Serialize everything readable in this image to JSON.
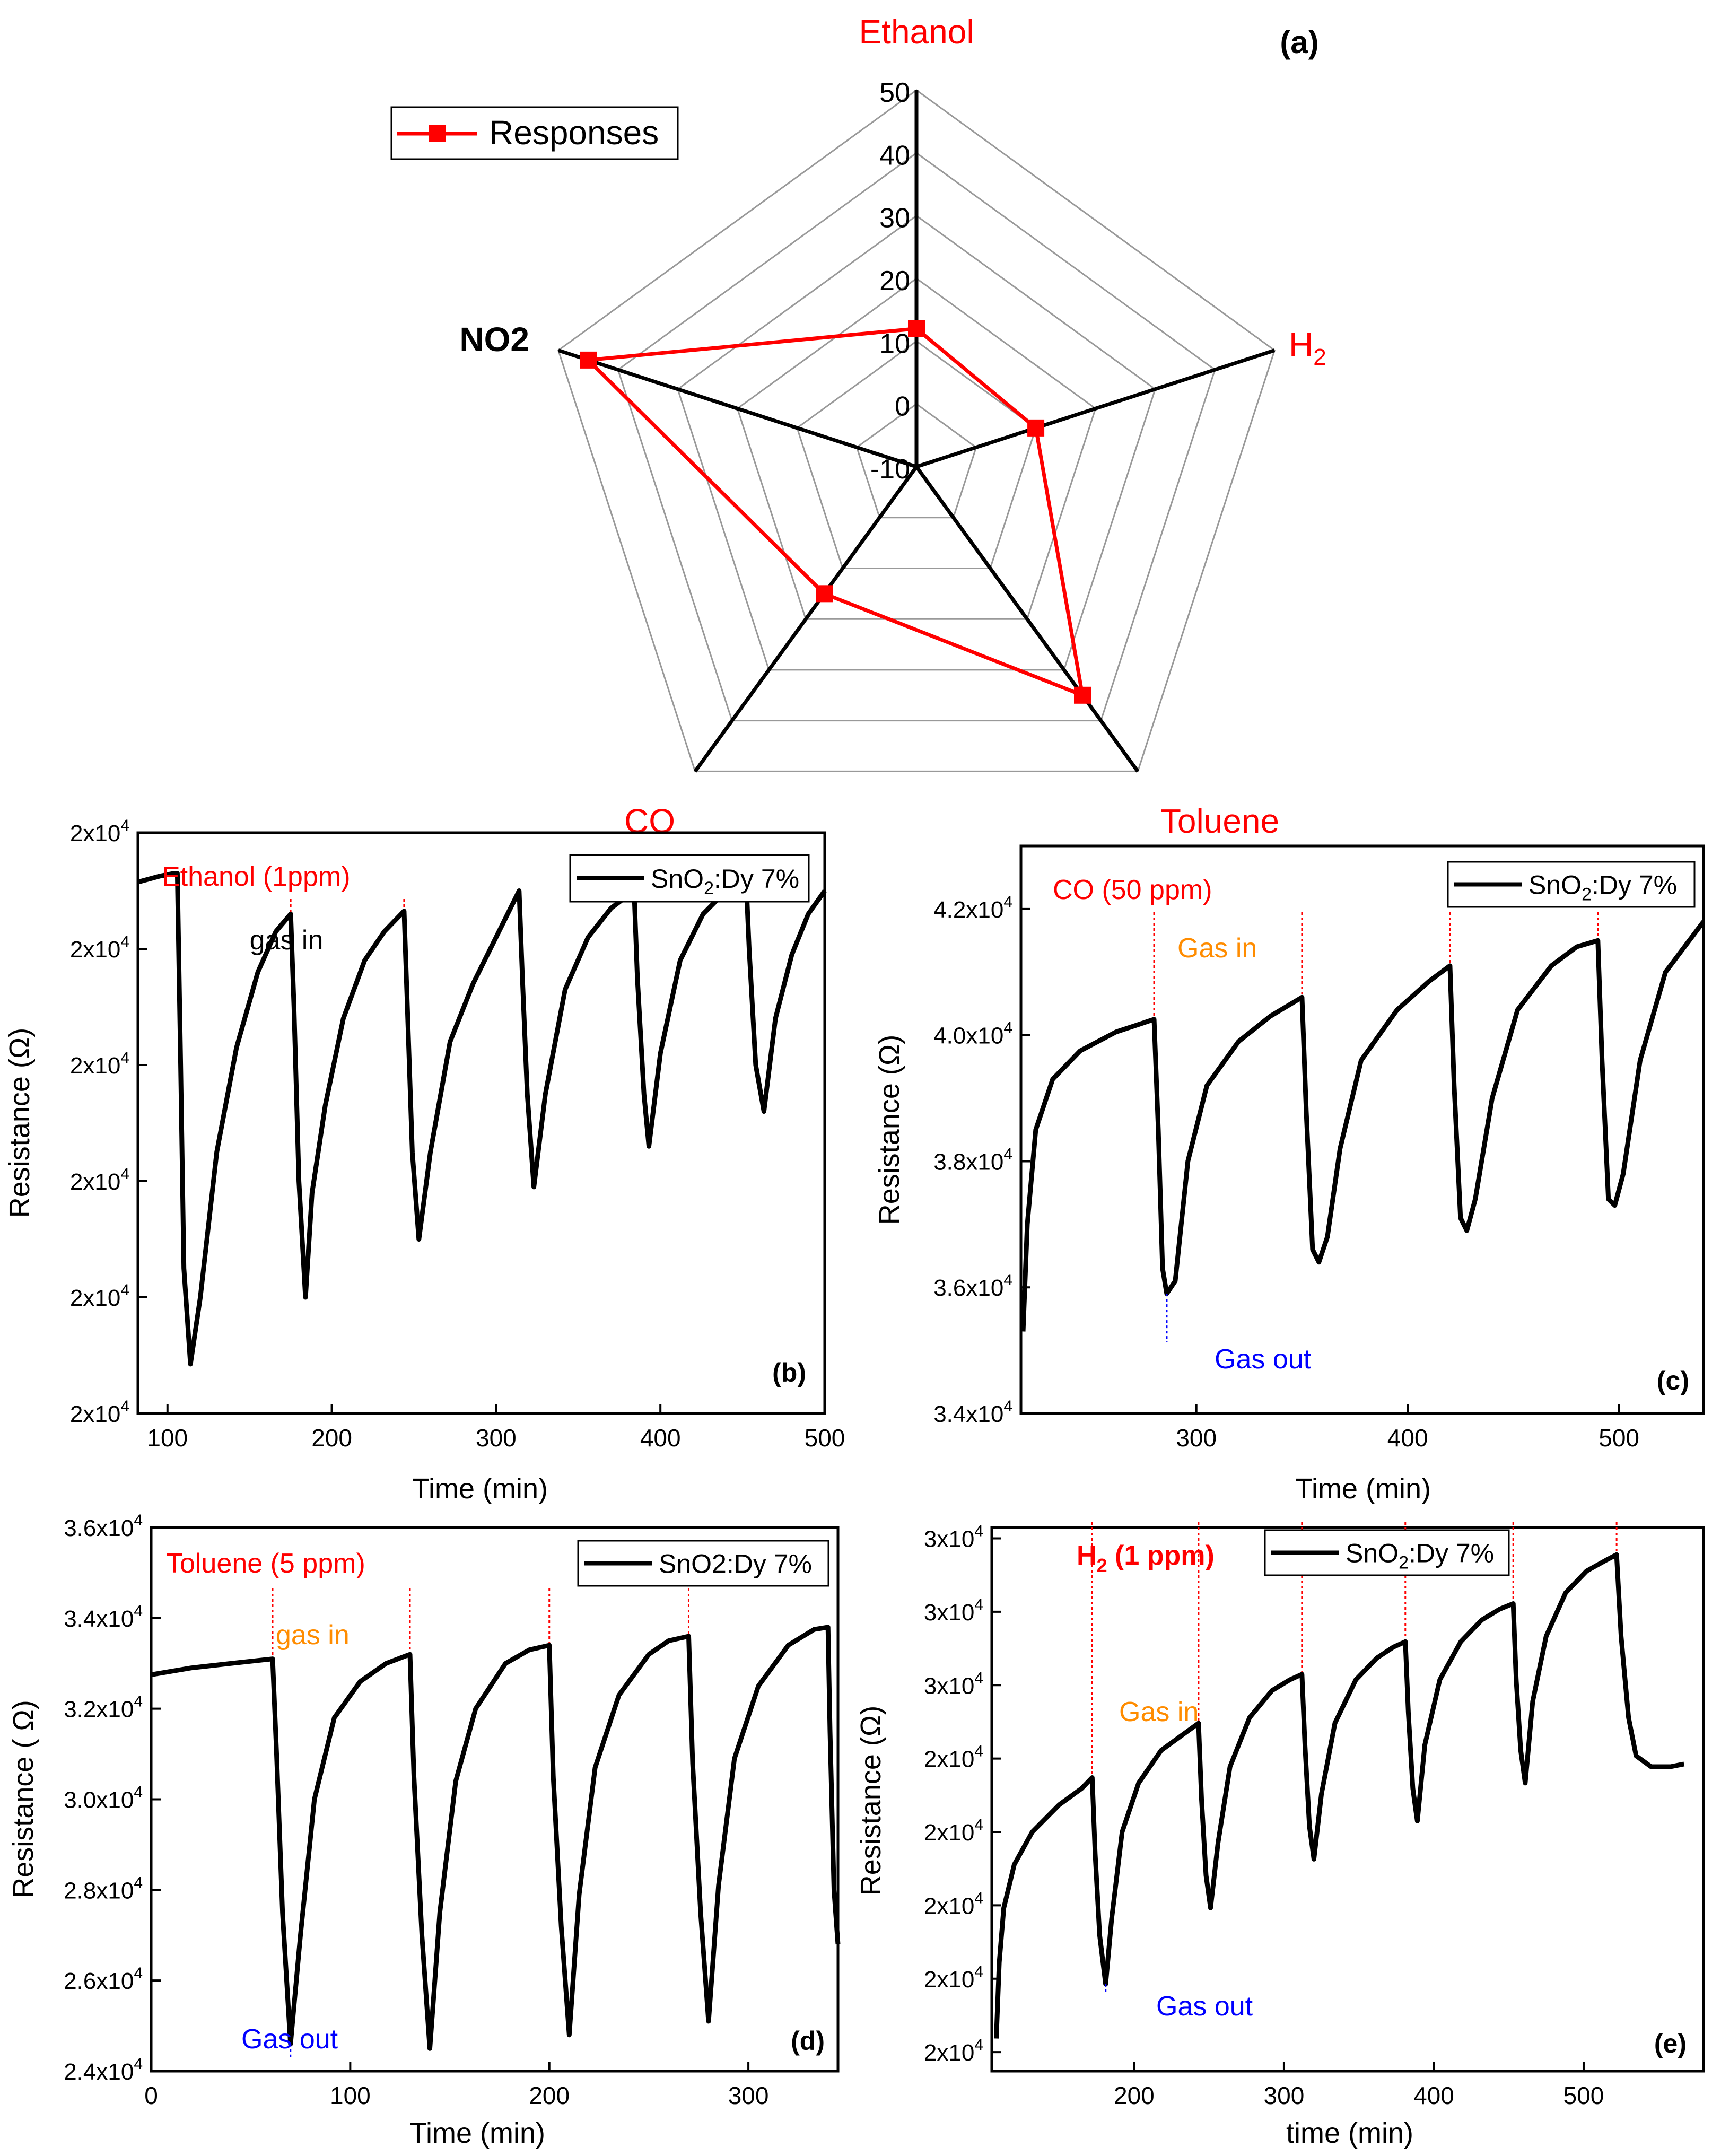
{
  "colors": {
    "red": "#ff0000",
    "orange": "#ff8c00",
    "blue": "#0000ff",
    "black": "#000000",
    "grid": "#999999"
  },
  "chart_data": [
    {
      "panel": "(a)",
      "type": "radar",
      "axes": [
        "Ethanol",
        "H",
        "Toluene",
        "CO",
        "NO2"
      ],
      "axis_subscripts": {
        "H": "2"
      },
      "axis_colors": {
        "Ethanol": "#ff0000",
        "H": "#ff0000",
        "Toluene": "#ff0000",
        "CO": "#ff0000",
        "NO2": "#000000"
      },
      "rlim": [
        -10,
        50
      ],
      "ticks": [
        "50",
        "40",
        "30",
        "20",
        "10",
        "0",
        "-10"
      ],
      "tick_values": [
        50,
        40,
        30,
        20,
        10,
        0,
        -10
      ],
      "series": [
        {
          "name": "Responses",
          "values": [
            12,
            10,
            35,
            15,
            45
          ]
        }
      ],
      "legend": "top-left"
    },
    {
      "panel": "(b)",
      "type": "line",
      "annotation": "Ethanol (1ppm)",
      "legend": "SnO",
      "legend_sub": "2",
      "legend_tail": ":Dy 7%",
      "marker": "gas in",
      "xlabel": "Time (min)",
      "ylabel": "Resistance (Ω)",
      "xlim": [
        82,
        500
      ],
      "xticks": [
        "100",
        "200",
        "300",
        "400",
        "500"
      ],
      "xtick_values": [
        100,
        200,
        300,
        400,
        500
      ],
      "ylim": [
        0,
        1
      ],
      "yticks": [
        "2x10",
        "2x10",
        "2x10",
        "2x10",
        "2x10",
        "2x10"
      ],
      "ytick_exp": "4",
      "ytick_values": [
        0.0,
        0.2,
        0.4,
        0.6,
        0.8,
        1.0
      ],
      "gas_in": [
        106,
        175,
        244,
        314,
        384,
        452
      ],
      "points": [
        [
          82,
          0.915
        ],
        [
          95,
          0.925
        ],
        [
          104,
          0.93
        ],
        [
          106,
          0.93
        ],
        [
          108,
          0.6
        ],
        [
          110,
          0.25
        ],
        [
          114,
          0.085
        ],
        [
          120,
          0.2
        ],
        [
          130,
          0.45
        ],
        [
          142,
          0.63
        ],
        [
          155,
          0.76
        ],
        [
          166,
          0.83
        ],
        [
          175,
          0.86
        ],
        [
          177,
          0.7
        ],
        [
          180,
          0.4
        ],
        [
          184,
          0.2
        ],
        [
          188,
          0.38
        ],
        [
          196,
          0.53
        ],
        [
          207,
          0.68
        ],
        [
          220,
          0.78
        ],
        [
          232,
          0.83
        ],
        [
          244,
          0.865
        ],
        [
          246,
          0.7
        ],
        [
          249,
          0.45
        ],
        [
          253,
          0.3
        ],
        [
          260,
          0.45
        ],
        [
          272,
          0.64
        ],
        [
          286,
          0.74
        ],
        [
          300,
          0.82
        ],
        [
          314,
          0.9
        ],
        [
          316,
          0.75
        ],
        [
          319,
          0.55
        ],
        [
          323,
          0.39
        ],
        [
          330,
          0.55
        ],
        [
          342,
          0.73
        ],
        [
          356,
          0.82
        ],
        [
          370,
          0.87
        ],
        [
          384,
          0.9
        ],
        [
          386,
          0.75
        ],
        [
          390,
          0.55
        ],
        [
          393,
          0.46
        ],
        [
          400,
          0.62
        ],
        [
          412,
          0.78
        ],
        [
          426,
          0.86
        ],
        [
          440,
          0.9
        ],
        [
          452,
          0.93
        ],
        [
          454,
          0.8
        ],
        [
          458,
          0.6
        ],
        [
          463,
          0.52
        ],
        [
          470,
          0.68
        ],
        [
          480,
          0.79
        ],
        [
          490,
          0.86
        ],
        [
          500,
          0.9
        ]
      ]
    },
    {
      "panel": "(c)",
      "type": "line",
      "annotation": "CO (50 ppm)",
      "legend": "SnO",
      "legend_sub": "2",
      "legend_tail": ":Dy 7%",
      "gas_in_label": "Gas in",
      "gas_out_label": "Gas out",
      "xlabel": "Time (min)",
      "ylabel": "Resistance (Ω)",
      "xlim": [
        217,
        540
      ],
      "xticks": [
        "300",
        "400",
        "500"
      ],
      "xtick_values": [
        300,
        400,
        500
      ],
      "ylim": [
        34000,
        43000
      ],
      "yticks": [
        "3.4x10",
        "3.6x10",
        "3.8x10",
        "4.0x10",
        "4.2x10"
      ],
      "ytick_exp": "4",
      "ytick_values": [
        34000,
        36000,
        38000,
        40000,
        42000
      ],
      "gas_in": [
        280,
        350,
        420,
        490
      ],
      "points": [
        [
          218,
          35300
        ],
        [
          220,
          37000
        ],
        [
          224,
          38500
        ],
        [
          232,
          39300
        ],
        [
          245,
          39750
        ],
        [
          262,
          40050
        ],
        [
          280,
          40250
        ],
        [
          282,
          38500
        ],
        [
          284,
          36300
        ],
        [
          286,
          35900
        ],
        [
          290,
          36100
        ],
        [
          296,
          38000
        ],
        [
          305,
          39200
        ],
        [
          320,
          39900
        ],
        [
          335,
          40300
        ],
        [
          350,
          40600
        ],
        [
          352,
          38800
        ],
        [
          355,
          36600
        ],
        [
          358,
          36400
        ],
        [
          362,
          36800
        ],
        [
          368,
          38200
        ],
        [
          378,
          39600
        ],
        [
          395,
          40400
        ],
        [
          410,
          40850
        ],
        [
          420,
          41100
        ],
        [
          422,
          39200
        ],
        [
          425,
          37100
        ],
        [
          428,
          36900
        ],
        [
          432,
          37400
        ],
        [
          440,
          39000
        ],
        [
          452,
          40400
        ],
        [
          468,
          41100
        ],
        [
          480,
          41400
        ],
        [
          490,
          41500
        ],
        [
          492,
          39600
        ],
        [
          495,
          37400
        ],
        [
          498,
          37300
        ],
        [
          502,
          37800
        ],
        [
          510,
          39600
        ],
        [
          522,
          41000
        ],
        [
          540,
          41800
        ]
      ]
    },
    {
      "panel": "(d)",
      "type": "line",
      "annotation": "Toluene (5 ppm)",
      "legend": "SnO2:Dy 7%",
      "gas_in_label": "gas in",
      "gas_out_label": "Gas out",
      "xlabel": "Time (min)",
      "ylabel": "Resistance ( Ω)",
      "xlim": [
        0,
        345
      ],
      "xticks": [
        "0",
        "100",
        "200",
        "300"
      ],
      "xtick_values": [
        0,
        100,
        200,
        300
      ],
      "ylim": [
        24000,
        36000
      ],
      "yticks": [
        "2.4x10",
        "2.6x10",
        "2.8x10",
        "3.0x10",
        "3.2x10",
        "3.4x10",
        "3.6x10"
      ],
      "ytick_exp": "4",
      "ytick_values": [
        24000,
        26000,
        28000,
        30000,
        32000,
        34000,
        36000
      ],
      "gas_in": [
        61,
        130,
        200,
        270
      ],
      "points": [
        [
          0,
          32750
        ],
        [
          20,
          32900
        ],
        [
          40,
          33000
        ],
        [
          61,
          33100
        ],
        [
          63,
          31000
        ],
        [
          66,
          27500
        ],
        [
          70,
          24600
        ],
        [
          75,
          27000
        ],
        [
          82,
          30000
        ],
        [
          92,
          31800
        ],
        [
          105,
          32600
        ],
        [
          118,
          33000
        ],
        [
          130,
          33200
        ],
        [
          132,
          30500
        ],
        [
          136,
          27000
        ],
        [
          140,
          24500
        ],
        [
          145,
          27500
        ],
        [
          153,
          30400
        ],
        [
          163,
          32000
        ],
        [
          178,
          33000
        ],
        [
          190,
          33300
        ],
        [
          200,
          33400
        ],
        [
          202,
          30500
        ],
        [
          206,
          27200
        ],
        [
          210,
          24800
        ],
        [
          215,
          27900
        ],
        [
          223,
          30700
        ],
        [
          235,
          32300
        ],
        [
          250,
          33200
        ],
        [
          260,
          33500
        ],
        [
          270,
          33600
        ],
        [
          272,
          30800
        ],
        [
          276,
          27500
        ],
        [
          280,
          25100
        ],
        [
          285,
          28100
        ],
        [
          293,
          30900
        ],
        [
          305,
          32500
        ],
        [
          320,
          33400
        ],
        [
          333,
          33750
        ],
        [
          340,
          33800
        ],
        [
          341,
          31500
        ],
        [
          343,
          28000
        ],
        [
          345,
          26800
        ]
      ]
    },
    {
      "panel": "(e)",
      "type": "line",
      "annotation": "H",
      "annotation_sub": "2",
      "annotation_tail": " (1 ppm)",
      "legend": "SnO",
      "legend_sub": "2",
      "legend_tail": ":Dy 7%",
      "gas_in_label": "Gas in",
      "gas_out_label": "Gas out",
      "xlabel": "time (min)",
      "ylabel": "Resistance (Ω)",
      "xlim": [
        105,
        580
      ],
      "xticks": [
        "200",
        "300",
        "400",
        "500"
      ],
      "xtick_values": [
        200,
        300,
        400,
        500
      ],
      "ylim": [
        0,
        1
      ],
      "yticks": [
        "2x10",
        "2x10",
        "2x10",
        "2x10",
        "2x10",
        "3x10",
        "3x10",
        "3x10"
      ],
      "ytick_exp": "4",
      "ytick_values": [
        0.035,
        0.17,
        0.305,
        0.44,
        0.575,
        0.71,
        0.845,
        0.98
      ],
      "gas_in": [
        172,
        243,
        312,
        381,
        453,
        522
      ],
      "points": [
        [
          108,
          0.06
        ],
        [
          110,
          0.2
        ],
        [
          113,
          0.3
        ],
        [
          120,
          0.38
        ],
        [
          132,
          0.44
        ],
        [
          150,
          0.49
        ],
        [
          165,
          0.52
        ],
        [
          172,
          0.54
        ],
        [
          174,
          0.4
        ],
        [
          177,
          0.25
        ],
        [
          181,
          0.16
        ],
        [
          185,
          0.28
        ],
        [
          192,
          0.44
        ],
        [
          203,
          0.53
        ],
        [
          218,
          0.59
        ],
        [
          233,
          0.62
        ],
        [
          243,
          0.64
        ],
        [
          245,
          0.5
        ],
        [
          248,
          0.36
        ],
        [
          251,
          0.3
        ],
        [
          256,
          0.42
        ],
        [
          264,
          0.56
        ],
        [
          277,
          0.65
        ],
        [
          292,
          0.7
        ],
        [
          304,
          0.72
        ],
        [
          312,
          0.73
        ],
        [
          314,
          0.6
        ],
        [
          317,
          0.45
        ],
        [
          320,
          0.39
        ],
        [
          325,
          0.51
        ],
        [
          334,
          0.64
        ],
        [
          348,
          0.72
        ],
        [
          362,
          0.76
        ],
        [
          373,
          0.78
        ],
        [
          381,
          0.79
        ],
        [
          383,
          0.66
        ],
        [
          386,
          0.52
        ],
        [
          389,
          0.46
        ],
        [
          394,
          0.6
        ],
        [
          404,
          0.72
        ],
        [
          418,
          0.79
        ],
        [
          432,
          0.83
        ],
        [
          444,
          0.85
        ],
        [
          453,
          0.86
        ],
        [
          455,
          0.72
        ],
        [
          458,
          0.59
        ],
        [
          461,
          0.53
        ],
        [
          466,
          0.68
        ],
        [
          475,
          0.8
        ],
        [
          488,
          0.88
        ],
        [
          502,
          0.92
        ],
        [
          515,
          0.94
        ],
        [
          522,
          0.95
        ],
        [
          525,
          0.8
        ],
        [
          530,
          0.65
        ],
        [
          535,
          0.58
        ],
        [
          545,
          0.56
        ],
        [
          558,
          0.56
        ],
        [
          567,
          0.565
        ]
      ]
    }
  ]
}
